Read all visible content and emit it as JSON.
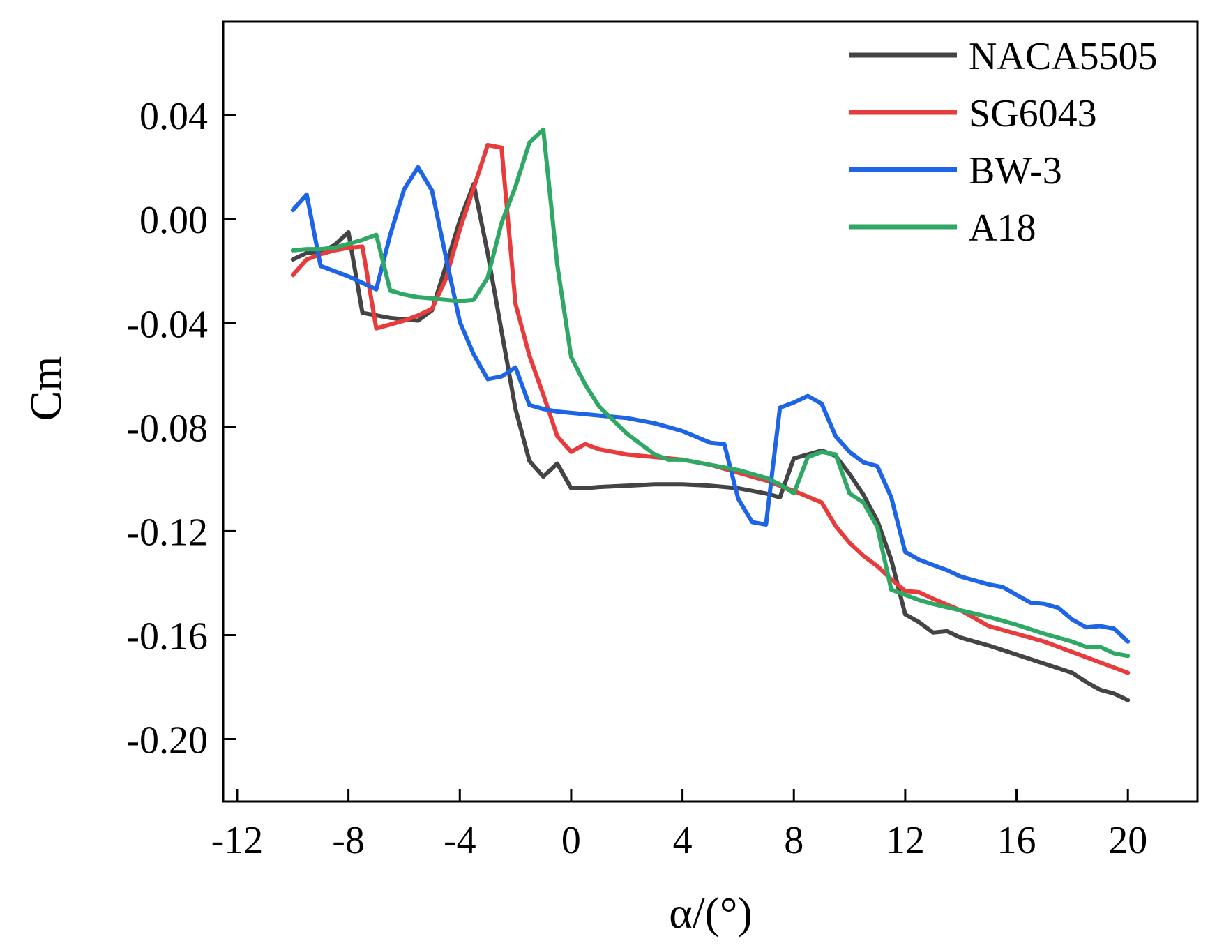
{
  "chart_data": {
    "type": "line",
    "title": "",
    "xlabel": "α/(°)",
    "ylabel": "Cm",
    "xlim": [
      -12.5,
      22.5
    ],
    "ylim": [
      -0.224,
      0.076
    ],
    "x_ticks": [
      -12,
      -8,
      -4,
      0,
      4,
      8,
      12,
      16,
      20
    ],
    "x_tick_labels": [
      "-12",
      "-8",
      "-4",
      "0",
      "4",
      "8",
      "12",
      "16",
      "20"
    ],
    "y_ticks": [
      0.04,
      0.0,
      -0.04,
      -0.08,
      -0.12,
      -0.16,
      -0.2
    ],
    "y_tick_labels": [
      "0.04",
      "0.00",
      "-0.04",
      "-0.08",
      "-0.12",
      "-0.16",
      "-0.20"
    ],
    "grid": false,
    "legend_position": "top-right",
    "series": [
      {
        "name": "NACA5505",
        "color": "#444444",
        "x": [
          -10,
          -9.5,
          -9,
          -8.5,
          -8,
          -7.5,
          -7,
          -6.5,
          -6,
          -5.5,
          -5,
          -4.5,
          -4,
          -3.5,
          -3,
          -2.5,
          -2,
          -1.5,
          -1,
          -0.5,
          0,
          0.5,
          1,
          2,
          3,
          4,
          5,
          6,
          7,
          7.5,
          8,
          8.5,
          9,
          9.5,
          10,
          10.5,
          11,
          11.5,
          12,
          12.5,
          13,
          13.5,
          14,
          15,
          16,
          17,
          18,
          18.5,
          19,
          19.5,
          20
        ],
        "y": [
          -0.0155,
          -0.013,
          -0.0125,
          -0.01,
          -0.005,
          -0.036,
          -0.037,
          -0.038,
          -0.0385,
          -0.039,
          -0.035,
          -0.018,
          -0.0005,
          0.0135,
          -0.013,
          -0.043,
          -0.073,
          -0.093,
          -0.099,
          -0.094,
          -0.1035,
          -0.1035,
          -0.103,
          -0.1025,
          -0.102,
          -0.102,
          -0.1025,
          -0.1035,
          -0.1055,
          -0.107,
          -0.092,
          -0.0905,
          -0.089,
          -0.091,
          -0.098,
          -0.106,
          -0.116,
          -0.131,
          -0.152,
          -0.155,
          -0.159,
          -0.1585,
          -0.161,
          -0.164,
          -0.1675,
          -0.171,
          -0.1745,
          -0.178,
          -0.181,
          -0.1825,
          -0.185
        ]
      },
      {
        "name": "SG6043",
        "color": "#E83C3C",
        "x": [
          -10,
          -9.5,
          -9,
          -8.5,
          -8,
          -7.5,
          -7,
          -6.5,
          -6,
          -5.5,
          -5,
          -4.5,
          -4,
          -3.5,
          -3,
          -2.5,
          -2,
          -1.5,
          -1,
          -0.5,
          0,
          0.5,
          1,
          2,
          3,
          4,
          5,
          6,
          7,
          8,
          9,
          9.5,
          10,
          10.5,
          11,
          11.5,
          12,
          12.5,
          13,
          14,
          15,
          16,
          17,
          18,
          19,
          20
        ],
        "y": [
          -0.0215,
          -0.0155,
          -0.0135,
          -0.012,
          -0.011,
          -0.0105,
          -0.042,
          -0.0405,
          -0.039,
          -0.037,
          -0.0345,
          -0.023,
          -0.004,
          0.012,
          0.0285,
          0.0275,
          -0.0325,
          -0.0525,
          -0.0675,
          -0.0835,
          -0.0895,
          -0.0865,
          -0.0885,
          -0.0905,
          -0.0915,
          -0.0925,
          -0.0945,
          -0.0975,
          -0.1005,
          -0.1045,
          -0.109,
          -0.118,
          -0.1245,
          -0.1295,
          -0.1335,
          -0.1385,
          -0.143,
          -0.1435,
          -0.146,
          -0.1505,
          -0.1565,
          -0.1595,
          -0.1625,
          -0.1665,
          -0.1705,
          -0.1745
        ]
      },
      {
        "name": "BW-3",
        "color": "#1E64E6",
        "x": [
          -10,
          -9.5,
          -9,
          -8.5,
          -8,
          -7.5,
          -7,
          -6.5,
          -6,
          -5.5,
          -5,
          -4.5,
          -4,
          -3.5,
          -3,
          -2.5,
          -2,
          -1.5,
          -1,
          -0.5,
          0,
          1,
          2,
          3,
          4,
          5,
          5.5,
          6,
          6.5,
          7,
          7.5,
          8,
          8.5,
          9,
          9.5,
          10,
          10.5,
          11,
          11.5,
          12,
          12.5,
          13,
          13.5,
          14,
          14.5,
          15,
          15.5,
          16,
          16.5,
          17,
          17.5,
          18,
          18.5,
          19,
          19.5,
          20
        ],
        "y": [
          0.0035,
          0.0095,
          -0.018,
          -0.02,
          -0.022,
          -0.0245,
          -0.027,
          -0.006,
          0.0115,
          0.02,
          0.011,
          -0.0145,
          -0.0395,
          -0.052,
          -0.0615,
          -0.0605,
          -0.057,
          -0.0715,
          -0.073,
          -0.074,
          -0.0745,
          -0.0755,
          -0.0765,
          -0.0785,
          -0.0815,
          -0.086,
          -0.0865,
          -0.1075,
          -0.1165,
          -0.1175,
          -0.0725,
          -0.0705,
          -0.068,
          -0.071,
          -0.0835,
          -0.0895,
          -0.0935,
          -0.095,
          -0.107,
          -0.128,
          -0.131,
          -0.133,
          -0.135,
          -0.1375,
          -0.139,
          -0.1405,
          -0.1415,
          -0.1445,
          -0.1475,
          -0.148,
          -0.1495,
          -0.154,
          -0.157,
          -0.1565,
          -0.1575,
          -0.1625
        ]
      },
      {
        "name": "A18",
        "color": "#2EA864",
        "x": [
          -10,
          -9.5,
          -9,
          -8.5,
          -8,
          -7.5,
          -7,
          -6.5,
          -6,
          -5.5,
          -5,
          -4.5,
          -4,
          -3.5,
          -3,
          -2.5,
          -2,
          -1.5,
          -1,
          -0.5,
          0,
          0.5,
          1,
          2,
          3,
          3.5,
          4,
          5,
          6,
          7,
          7.5,
          8,
          8.5,
          9,
          9.5,
          10,
          10.5,
          11,
          11.5,
          12,
          12.5,
          13,
          14,
          15,
          16,
          17,
          18,
          18.5,
          19,
          19.5,
          20
        ],
        "y": [
          -0.012,
          -0.0115,
          -0.0115,
          -0.011,
          -0.0095,
          -0.008,
          -0.006,
          -0.0275,
          -0.029,
          -0.03,
          -0.0305,
          -0.031,
          -0.0315,
          -0.031,
          -0.0225,
          -0.0015,
          0.0125,
          0.0295,
          0.0345,
          -0.0175,
          -0.053,
          -0.0635,
          -0.072,
          -0.0825,
          -0.0905,
          -0.0925,
          -0.0925,
          -0.0945,
          -0.0965,
          -0.0995,
          -0.102,
          -0.1055,
          -0.0915,
          -0.0895,
          -0.0905,
          -0.1055,
          -0.109,
          -0.1185,
          -0.1425,
          -0.1445,
          -0.1465,
          -0.148,
          -0.1505,
          -0.153,
          -0.156,
          -0.1595,
          -0.1625,
          -0.1645,
          -0.1645,
          -0.167,
          -0.168
        ]
      }
    ]
  }
}
